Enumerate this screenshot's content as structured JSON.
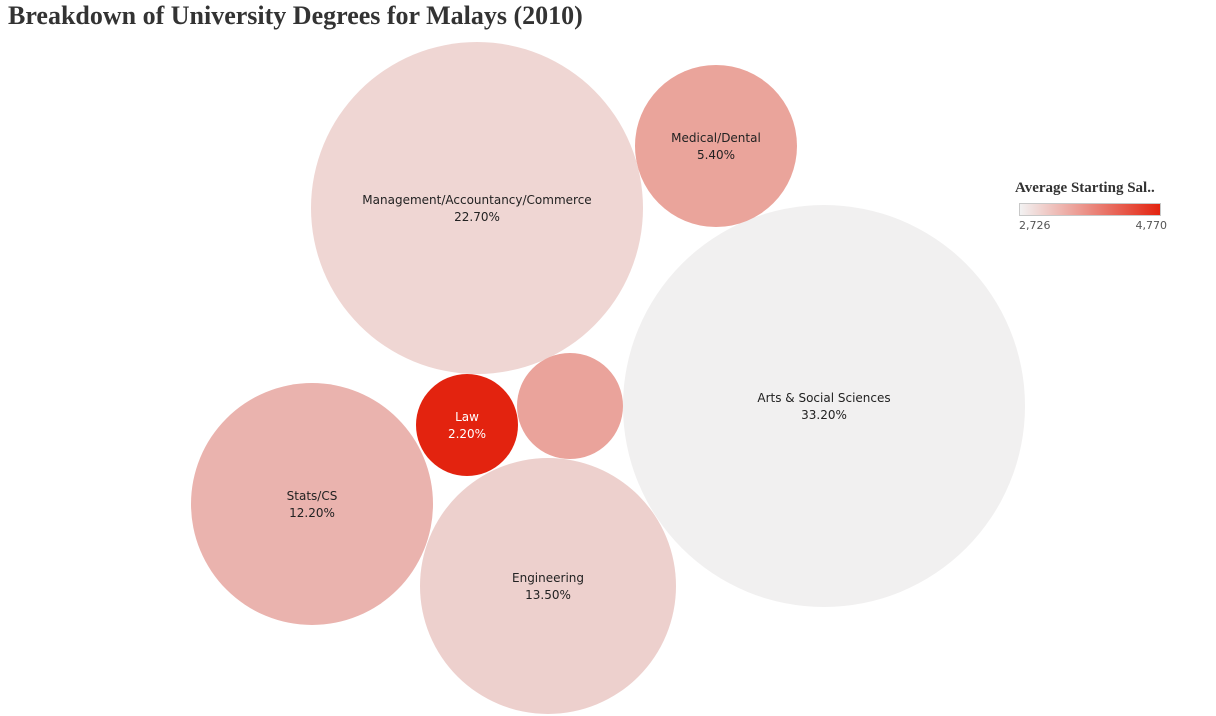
{
  "title": "Breakdown of University Degrees for Malays (2010)",
  "legend": {
    "title": "Average Starting Sal..",
    "min_label": "2,726",
    "max_label": "4,770",
    "color_low": "#f2f2f2",
    "color_high": "#e3230f"
  },
  "chart_data": {
    "type": "bubble",
    "title": "Breakdown of University Degrees for Malays (2010)",
    "size_measure": "share of degrees (%)",
    "color_measure": "Average Starting Sal..",
    "color_range": [
      2726,
      4770
    ],
    "items": [
      {
        "name": "Arts & Social Sciences",
        "share_label": "33.20%",
        "share": 33.2,
        "salary": 2726,
        "color": "#f1f0f0"
      },
      {
        "name": "Management/Accountancy/Commerce",
        "share_label": "22.70%",
        "share": 22.7,
        "salary": 3000,
        "color": "#efd6d3"
      },
      {
        "name": "Engineering",
        "share_label": "13.50%",
        "share": 13.5,
        "salary": 3100,
        "color": "#edd0cd"
      },
      {
        "name": "Stats/CS",
        "share_label": "12.20%",
        "share": 12.2,
        "salary": 3400,
        "color": "#eab3ae"
      },
      {
        "name": "Medical/Dental",
        "share_label": "5.40%",
        "share": 5.4,
        "salary": 3600,
        "color": "#eaa49b"
      },
      {
        "name": "",
        "share_label": "",
        "share": 2.8,
        "salary": 3600,
        "color": "#eaa39b"
      },
      {
        "name": "Law",
        "share_label": "2.20%",
        "share": 2.2,
        "salary": 4770,
        "color": "#e3230f"
      }
    ]
  }
}
